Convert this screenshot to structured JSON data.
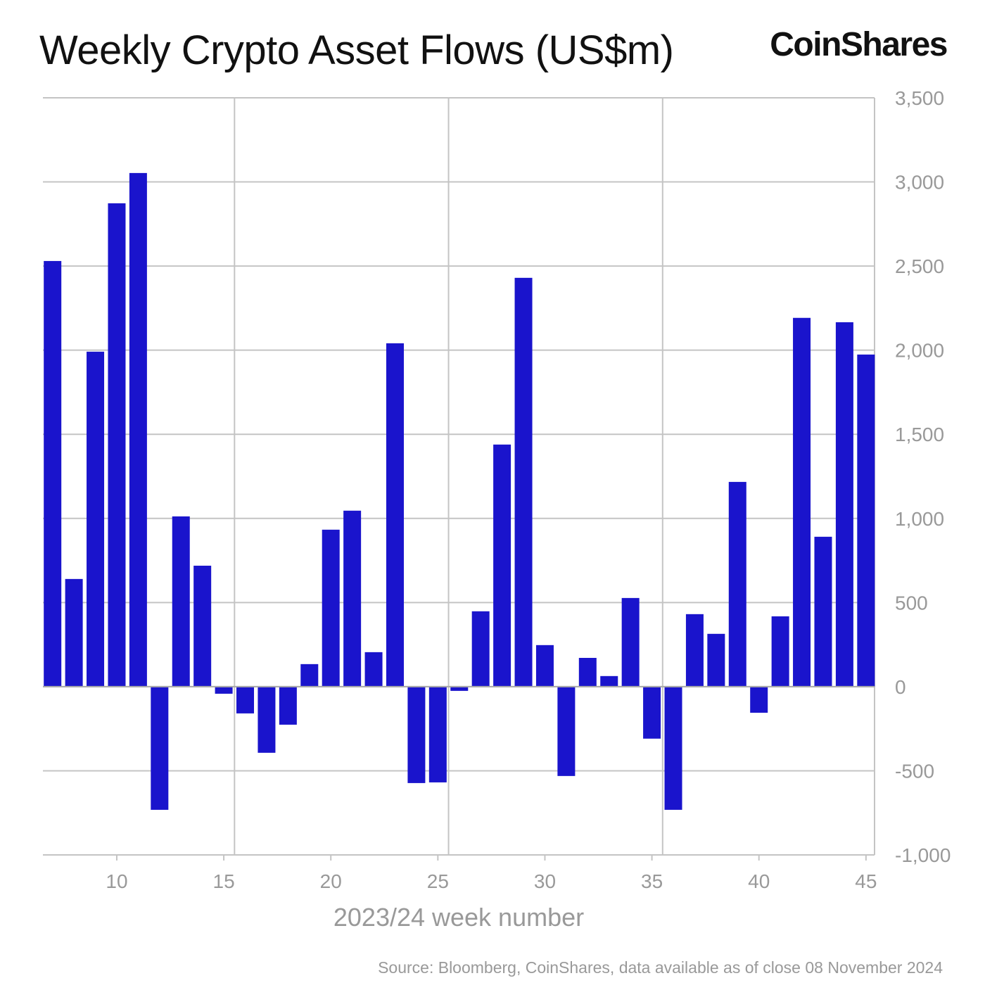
{
  "title": "Weekly Crypto Asset Flows (US$m)",
  "logo": "CoinShares",
  "source": "Source: Bloomberg, CoinShares, data available as of close 08 November 2024",
  "colors": {
    "bar": "#1a14cc",
    "grid": "#c4c4c4",
    "axis_text": "#999999"
  },
  "chart_data": {
    "type": "bar",
    "title": "Weekly Crypto Asset Flows (US$m)",
    "xlabel": "2023/24 week number",
    "ylabel": "",
    "ylim": [
      -1000,
      3500
    ],
    "xlim": [
      6.55,
      45.4
    ],
    "y_axis_position": "right",
    "grid": true,
    "yticks": [
      3500,
      3000,
      2500,
      2000,
      1500,
      1000,
      500,
      0,
      -500,
      -1000
    ],
    "ytick_labels": [
      "3,500",
      "3,000",
      "2,500",
      "2,000",
      "1,500",
      "1,000",
      "500",
      "0",
      "-500",
      "-1,000"
    ],
    "xticks": [
      10,
      15,
      20,
      25,
      30,
      35,
      40,
      45
    ],
    "xtick_labels": [
      "10",
      "15",
      "20",
      "25",
      "30",
      "35",
      "40",
      "45"
    ],
    "categories": [
      7,
      8,
      9,
      10,
      11,
      12,
      13,
      14,
      15,
      16,
      17,
      18,
      19,
      20,
      21,
      22,
      23,
      24,
      25,
      26,
      27,
      28,
      29,
      30,
      31,
      32,
      33,
      34,
      35,
      36,
      37,
      38,
      39,
      40,
      41,
      42,
      43,
      44,
      45
    ],
    "values": [
      2530,
      640,
      1991,
      2873,
      3053,
      -732,
      1012,
      719,
      -42,
      -159,
      -393,
      -226,
      134,
      933,
      1046,
      205,
      2041,
      -573,
      -569,
      -25,
      448,
      1439,
      2430,
      247,
      -531,
      171,
      63,
      527,
      -309,
      -732,
      431,
      314,
      1217,
      -155,
      418,
      2192,
      891,
      2166,
      1974
    ]
  }
}
